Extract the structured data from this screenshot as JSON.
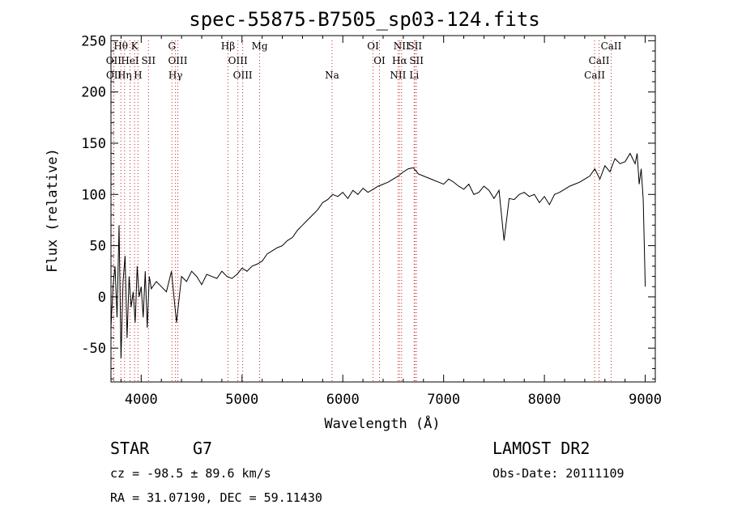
{
  "title": "spec-55875-B7505_sp03-124.fits",
  "info": {
    "class": "STAR",
    "subclass": "G7",
    "survey": "LAMOST DR2",
    "cz": "cz = -98.5 ± 89.6 km/s",
    "obsdate": "Obs-Date: 20111109",
    "radec": "RA =  31.07190, DEC =  59.11430"
  },
  "colors": {
    "axis": "#000000",
    "spectrum": "#000000",
    "lines": "#d02020"
  },
  "chart_data": {
    "type": "line",
    "xlabel": "Wavelength (Å)",
    "ylabel": "Flux (relative)",
    "xlim": [
      3700,
      9100
    ],
    "ylim": [
      -83,
      255
    ],
    "xticks": [
      4000,
      5000,
      6000,
      7000,
      8000,
      9000
    ],
    "yticks": [
      -50,
      0,
      50,
      100,
      150,
      200,
      250
    ],
    "series": [
      {
        "x": [
          3700,
          3720,
          3740,
          3760,
          3780,
          3800,
          3820,
          3840,
          3860,
          3880,
          3900,
          3920,
          3940,
          3960,
          3980,
          4000,
          4020,
          4040,
          4060,
          4080,
          4100,
          4150,
          4200,
          4250,
          4300,
          4350,
          4400,
          4450,
          4500,
          4550,
          4600,
          4650,
          4700,
          4750,
          4800,
          4850,
          4900,
          4950,
          5000,
          5050,
          5100,
          5150,
          5200,
          5250,
          5300,
          5350,
          5400,
          5450,
          5500,
          5550,
          5600,
          5650,
          5700,
          5750,
          5800,
          5850,
          5900,
          5950,
          6000,
          6050,
          6100,
          6150,
          6200,
          6250,
          6300,
          6350,
          6400,
          6450,
          6500,
          6550,
          6600,
          6650,
          6700,
          6750,
          6800,
          6850,
          6900,
          6950,
          7000,
          7050,
          7100,
          7150,
          7200,
          7250,
          7300,
          7350,
          7400,
          7450,
          7500,
          7550,
          7600,
          7650,
          7700,
          7750,
          7800,
          7850,
          7900,
          7950,
          8000,
          8050,
          8100,
          8150,
          8200,
          8250,
          8300,
          8350,
          8400,
          8450,
          8500,
          8550,
          8600,
          8650,
          8700,
          8750,
          8800,
          8850,
          8900,
          8920,
          8940,
          8960,
          8980,
          9000
        ],
        "y": [
          -30,
          10,
          30,
          -20,
          70,
          -60,
          15,
          40,
          -40,
          20,
          -10,
          5,
          -25,
          30,
          0,
          10,
          -20,
          25,
          -30,
          20,
          8,
          15,
          10,
          5,
          25,
          -25,
          20,
          15,
          25,
          20,
          12,
          22,
          20,
          18,
          25,
          20,
          18,
          22,
          28,
          25,
          30,
          32,
          35,
          42,
          45,
          48,
          50,
          55,
          58,
          65,
          70,
          75,
          80,
          85,
          92,
          95,
          100,
          98,
          102,
          96,
          104,
          100,
          106,
          102,
          105,
          108,
          110,
          112,
          115,
          118,
          122,
          125,
          126,
          120,
          118,
          116,
          114,
          112,
          110,
          115,
          112,
          108,
          105,
          110,
          100,
          102,
          108,
          104,
          96,
          104,
          55,
          96,
          95,
          100,
          102,
          98,
          100,
          92,
          98,
          90,
          100,
          102,
          105,
          108,
          110,
          112,
          115,
          118,
          125,
          115,
          128,
          122,
          135,
          130,
          132,
          140,
          130,
          140,
          110,
          125,
          95,
          10
        ]
      }
    ],
    "line_labels": [
      {
        "text": "Hθ",
        "x": 3798,
        "row": 0
      },
      {
        "text": "K",
        "x": 3934,
        "row": 0
      },
      {
        "text": "G",
        "x": 4305,
        "row": 0
      },
      {
        "text": "Hβ",
        "x": 4861,
        "row": 0
      },
      {
        "text": "Mg",
        "x": 5175,
        "row": 0
      },
      {
        "text": "OI",
        "x": 6300,
        "row": 0
      },
      {
        "text": "NII",
        "x": 6583,
        "row": 0
      },
      {
        "text": "SII",
        "x": 6716,
        "row": 0
      },
      {
        "text": "CaII",
        "x": 8662,
        "row": 0
      },
      {
        "text": "OII",
        "x": 3727,
        "row": 1
      },
      {
        "text": "HeI",
        "x": 3889,
        "row": 1
      },
      {
        "text": "SII",
        "x": 4072,
        "row": 1
      },
      {
        "text": "OIII",
        "x": 4363,
        "row": 1
      },
      {
        "text": "OIII",
        "x": 4959,
        "row": 1
      },
      {
        "text": "OI",
        "x": 6364,
        "row": 1
      },
      {
        "text": "Hα",
        "x": 6563,
        "row": 1
      },
      {
        "text": "SII",
        "x": 6731,
        "row": 1
      },
      {
        "text": "CaII",
        "x": 8542,
        "row": 1
      },
      {
        "text": "OII",
        "x": 3729,
        "row": 2
      },
      {
        "text": "Hη",
        "x": 3835,
        "row": 2
      },
      {
        "text": "H",
        "x": 3968,
        "row": 2
      },
      {
        "text": "Hγ",
        "x": 4340,
        "row": 2
      },
      {
        "text": "OIII",
        "x": 5007,
        "row": 2
      },
      {
        "text": "Na",
        "x": 5893,
        "row": 2
      },
      {
        "text": "NII",
        "x": 6548,
        "row": 2
      },
      {
        "text": "Li",
        "x": 6708,
        "row": 2
      },
      {
        "text": "CaII",
        "x": 8498,
        "row": 2
      }
    ]
  }
}
